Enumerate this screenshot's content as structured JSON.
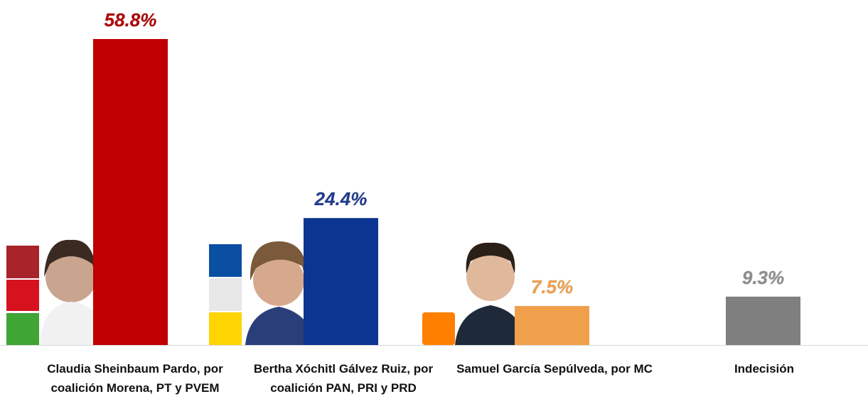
{
  "chart_data": {
    "type": "bar",
    "categories": [
      "Claudia Sheinbaum Pardo, por coalición Morena, PT y PVEM",
      "Bertha Xóchitl Gálvez Ruiz, por coalición PAN, PRI y PRD",
      "Samuel García Sepúlveda, por MC",
      "Indecisión"
    ],
    "values": [
      58.8,
      24.4,
      7.5,
      9.3
    ],
    "value_labels": [
      "58.8%",
      "24.4%",
      "7.5%",
      "9.3%"
    ],
    "colors": [
      "#c00000",
      "#0c3591",
      "#f0a04b",
      "#7f7f7f"
    ],
    "label_colors": [
      "#b00000",
      "#1f3a8f",
      "#f0a04b",
      "#8c8c8c"
    ]
  }
}
